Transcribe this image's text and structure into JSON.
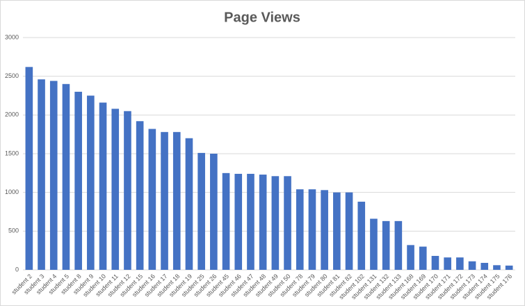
{
  "chart_data": {
    "type": "bar",
    "title": "Page Views",
    "categories": [
      "student 2",
      "student 3",
      "student 4",
      "student 5",
      "student 8",
      "student 9",
      "student 10",
      "student 11",
      "student 12",
      "student 15",
      "student 16",
      "student 17",
      "student 18",
      "student 19",
      "student 25",
      "student 26",
      "student 45",
      "student 46",
      "student 47",
      "student 48",
      "student 49",
      "student 50",
      "student 78",
      "student 79",
      "student 80",
      "student 81",
      "student 82",
      "student 102",
      "student 131",
      "student 132",
      "student 133",
      "student 168",
      "student 169",
      "student 170",
      "student 171",
      "student 172",
      "student 173",
      "student 174",
      "student 175",
      "student 176"
    ],
    "values": [
      2620,
      2460,
      2440,
      2400,
      2300,
      2250,
      2160,
      2080,
      2050,
      1920,
      1820,
      1780,
      1780,
      1700,
      1510,
      1500,
      1250,
      1240,
      1240,
      1230,
      1210,
      1210,
      1040,
      1040,
      1030,
      1000,
      1000,
      880,
      660,
      630,
      630,
      320,
      300,
      180,
      160,
      160,
      110,
      90,
      60,
      55
    ],
    "color": "#4472c4",
    "ylim": [
      0,
      3000
    ],
    "yticks": [
      0,
      500,
      1000,
      1500,
      2000,
      2500,
      3000
    ],
    "grid": true
  }
}
